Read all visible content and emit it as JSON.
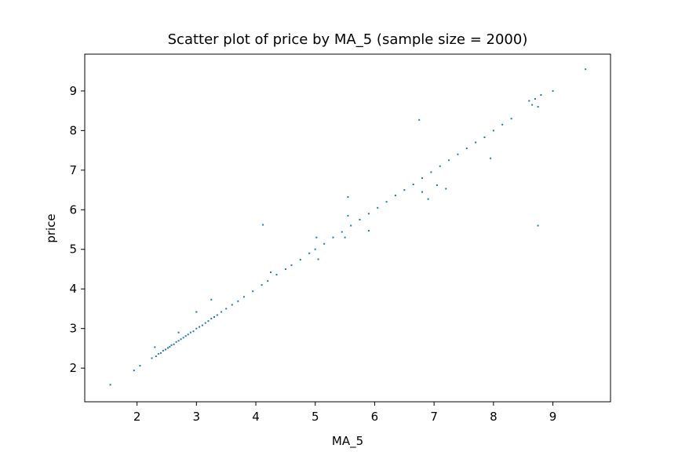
{
  "chart_data": {
    "type": "scatter",
    "title": "Scatter plot of price by MA_5 (sample size = 2000)",
    "xlabel": "MA_5",
    "ylabel": "price",
    "xlim": [
      1.12,
      9.97
    ],
    "ylim": [
      1.15,
      9.93
    ],
    "x_ticks": [
      2,
      3,
      4,
      5,
      6,
      7,
      8,
      9
    ],
    "y_ticks": [
      2,
      3,
      4,
      5,
      6,
      7,
      8,
      9
    ],
    "grid": false,
    "marker_color": "#1f77b4",
    "sample_size": 2000,
    "points": [
      [
        1.55,
        1.58
      ],
      [
        1.95,
        1.94
      ],
      [
        2.05,
        2.06
      ],
      [
        2.25,
        2.25
      ],
      [
        2.3,
        2.53
      ],
      [
        2.32,
        2.3
      ],
      [
        2.36,
        2.36
      ],
      [
        2.4,
        2.38
      ],
      [
        2.44,
        2.44
      ],
      [
        2.48,
        2.47
      ],
      [
        2.52,
        2.51
      ],
      [
        2.55,
        2.54
      ],
      [
        2.58,
        2.58
      ],
      [
        2.62,
        2.6
      ],
      [
        2.66,
        2.66
      ],
      [
        2.7,
        2.9
      ],
      [
        2.7,
        2.69
      ],
      [
        2.74,
        2.73
      ],
      [
        2.78,
        2.77
      ],
      [
        2.82,
        2.81
      ],
      [
        2.86,
        2.85
      ],
      [
        2.9,
        2.9
      ],
      [
        2.95,
        2.93
      ],
      [
        3.0,
        3.42
      ],
      [
        3.0,
        3.0
      ],
      [
        3.05,
        3.04
      ],
      [
        3.1,
        3.08
      ],
      [
        3.15,
        3.14
      ],
      [
        3.2,
        3.19
      ],
      [
        3.25,
        3.73
      ],
      [
        3.25,
        3.25
      ],
      [
        3.3,
        3.29
      ],
      [
        3.35,
        3.34
      ],
      [
        3.42,
        3.42
      ],
      [
        3.5,
        3.5
      ],
      [
        3.6,
        3.6
      ],
      [
        3.7,
        3.69
      ],
      [
        3.8,
        3.8
      ],
      [
        3.95,
        3.94
      ],
      [
        4.1,
        4.1
      ],
      [
        4.12,
        5.62
      ],
      [
        4.2,
        4.2
      ],
      [
        4.25,
        4.42
      ],
      [
        4.35,
        4.36
      ],
      [
        4.5,
        4.5
      ],
      [
        4.6,
        4.6
      ],
      [
        4.75,
        4.74
      ],
      [
        4.9,
        4.9
      ],
      [
        5.0,
        5.0
      ],
      [
        5.02,
        5.3
      ],
      [
        5.05,
        4.75
      ],
      [
        5.15,
        5.14
      ],
      [
        5.3,
        5.3
      ],
      [
        5.45,
        5.44
      ],
      [
        5.5,
        5.3
      ],
      [
        5.55,
        5.85
      ],
      [
        5.6,
        5.6
      ],
      [
        5.55,
        6.32
      ],
      [
        5.9,
        5.47
      ],
      [
        5.75,
        5.75
      ],
      [
        5.9,
        5.9
      ],
      [
        6.05,
        6.05
      ],
      [
        6.2,
        6.2
      ],
      [
        6.35,
        6.36
      ],
      [
        6.5,
        6.5
      ],
      [
        6.65,
        6.64
      ],
      [
        6.75,
        8.27
      ],
      [
        6.8,
        6.8
      ],
      [
        6.8,
        6.45
      ],
      [
        6.9,
        6.27
      ],
      [
        6.95,
        6.95
      ],
      [
        7.05,
        6.62
      ],
      [
        7.1,
        7.1
      ],
      [
        7.2,
        6.53
      ],
      [
        7.25,
        7.25
      ],
      [
        7.4,
        7.4
      ],
      [
        7.55,
        7.55
      ],
      [
        7.7,
        7.7
      ],
      [
        7.85,
        7.83
      ],
      [
        7.95,
        7.3
      ],
      [
        8.0,
        8.0
      ],
      [
        8.15,
        8.15
      ],
      [
        8.3,
        8.3
      ],
      [
        8.6,
        8.75
      ],
      [
        8.65,
        8.65
      ],
      [
        8.7,
        8.8
      ],
      [
        8.75,
        8.6
      ],
      [
        8.75,
        5.6
      ],
      [
        8.8,
        8.9
      ],
      [
        9.0,
        9.0
      ],
      [
        9.55,
        9.55
      ]
    ]
  }
}
